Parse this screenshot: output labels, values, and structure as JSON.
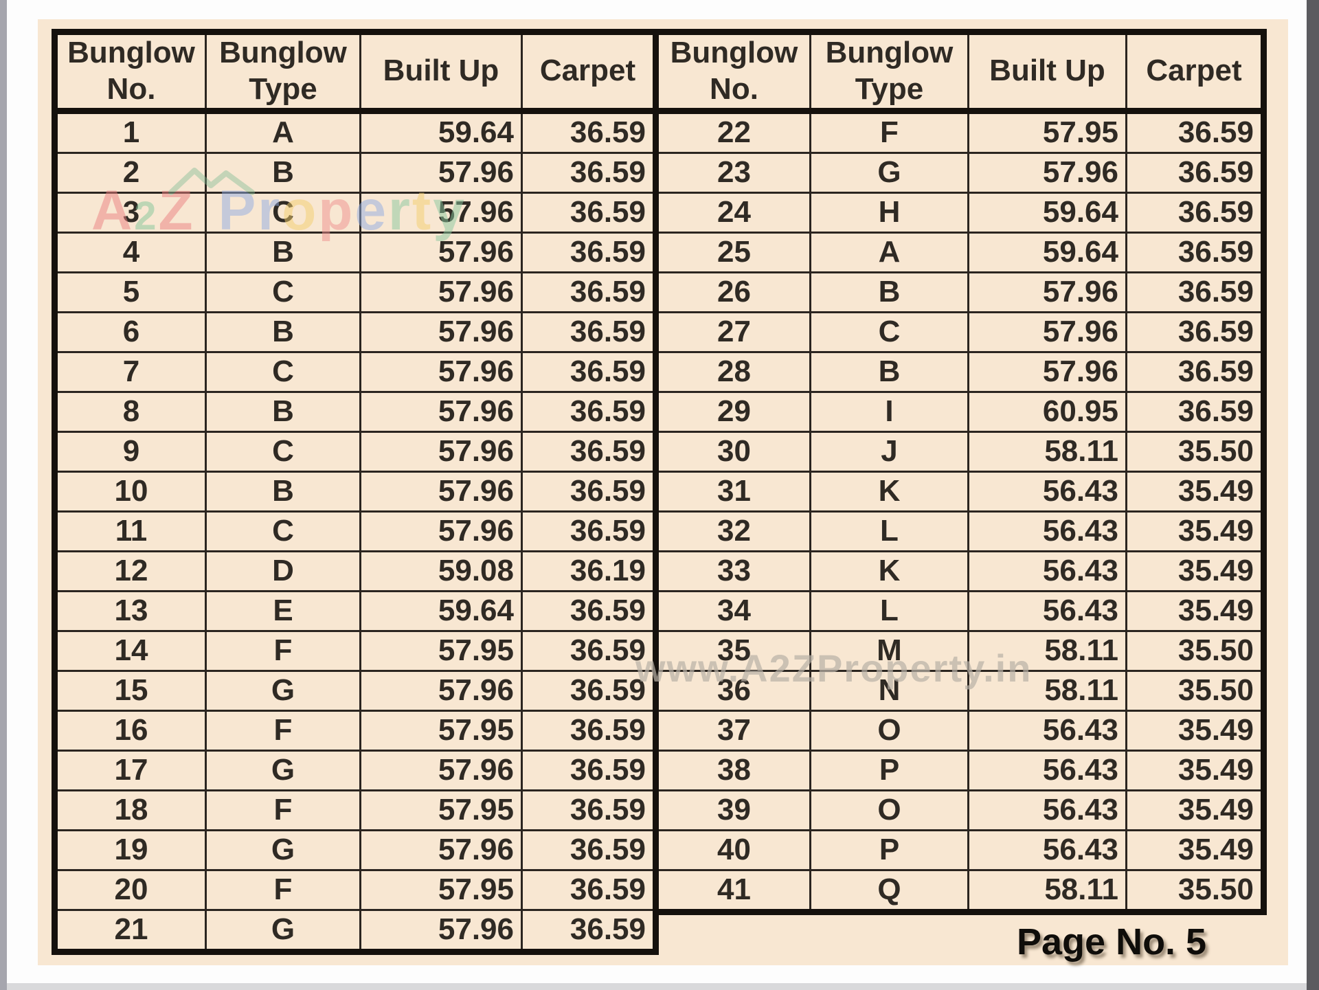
{
  "document": {
    "headers": [
      {
        "line1": "Bunglow",
        "line2": "No."
      },
      {
        "line1": "Bunglow",
        "line2": "Type"
      },
      {
        "line1": "Built Up",
        "line2": ""
      },
      {
        "line1": "Carpet",
        "line2": ""
      }
    ],
    "left_table": {
      "rows": [
        {
          "no": "1",
          "type": "A",
          "built_up": "59.64",
          "carpet": "36.59"
        },
        {
          "no": "2",
          "type": "B",
          "built_up": "57.96",
          "carpet": "36.59"
        },
        {
          "no": "3",
          "type": "C",
          "built_up": "57.96",
          "carpet": "36.59"
        },
        {
          "no": "4",
          "type": "B",
          "built_up": "57.96",
          "carpet": "36.59"
        },
        {
          "no": "5",
          "type": "C",
          "built_up": "57.96",
          "carpet": "36.59"
        },
        {
          "no": "6",
          "type": "B",
          "built_up": "57.96",
          "carpet": "36.59"
        },
        {
          "no": "7",
          "type": "C",
          "built_up": "57.96",
          "carpet": "36.59"
        },
        {
          "no": "8",
          "type": "B",
          "built_up": "57.96",
          "carpet": "36.59"
        },
        {
          "no": "9",
          "type": "C",
          "built_up": "57.96",
          "carpet": "36.59"
        },
        {
          "no": "10",
          "type": "B",
          "built_up": "57.96",
          "carpet": "36.59"
        },
        {
          "no": "11",
          "type": "C",
          "built_up": "57.96",
          "carpet": "36.59"
        },
        {
          "no": "12",
          "type": "D",
          "built_up": "59.08",
          "carpet": "36.19"
        },
        {
          "no": "13",
          "type": "E",
          "built_up": "59.64",
          "carpet": "36.59"
        },
        {
          "no": "14",
          "type": "F",
          "built_up": "57.95",
          "carpet": "36.59"
        },
        {
          "no": "15",
          "type": "G",
          "built_up": "57.96",
          "carpet": "36.59"
        },
        {
          "no": "16",
          "type": "F",
          "built_up": "57.95",
          "carpet": "36.59"
        },
        {
          "no": "17",
          "type": "G",
          "built_up": "57.96",
          "carpet": "36.59"
        },
        {
          "no": "18",
          "type": "F",
          "built_up": "57.95",
          "carpet": "36.59"
        },
        {
          "no": "19",
          "type": "G",
          "built_up": "57.96",
          "carpet": "36.59"
        },
        {
          "no": "20",
          "type": "F",
          "built_up": "57.95",
          "carpet": "36.59"
        },
        {
          "no": "21",
          "type": "G",
          "built_up": "57.96",
          "carpet": "36.59"
        }
      ]
    },
    "right_table": {
      "rows": [
        {
          "no": "22",
          "type": "F",
          "built_up": "57.95",
          "carpet": "36.59"
        },
        {
          "no": "23",
          "type": "G",
          "built_up": "57.96",
          "carpet": "36.59"
        },
        {
          "no": "24",
          "type": "H",
          "built_up": "59.64",
          "carpet": "36.59"
        },
        {
          "no": "25",
          "type": "A",
          "built_up": "59.64",
          "carpet": "36.59"
        },
        {
          "no": "26",
          "type": "B",
          "built_up": "57.96",
          "carpet": "36.59"
        },
        {
          "no": "27",
          "type": "C",
          "built_up": "57.96",
          "carpet": "36.59"
        },
        {
          "no": "28",
          "type": "B",
          "built_up": "57.96",
          "carpet": "36.59"
        },
        {
          "no": "29",
          "type": "I",
          "built_up": "60.95",
          "carpet": "36.59"
        },
        {
          "no": "30",
          "type": "J",
          "built_up": "58.11",
          "carpet": "35.50"
        },
        {
          "no": "31",
          "type": "K",
          "built_up": "56.43",
          "carpet": "35.49"
        },
        {
          "no": "32",
          "type": "L",
          "built_up": "56.43",
          "carpet": "35.49"
        },
        {
          "no": "33",
          "type": "K",
          "built_up": "56.43",
          "carpet": "35.49"
        },
        {
          "no": "34",
          "type": "L",
          "built_up": "56.43",
          "carpet": "35.49"
        },
        {
          "no": "35",
          "type": "M",
          "built_up": "58.11",
          "carpet": "35.50"
        },
        {
          "no": "36",
          "type": "N",
          "built_up": "58.11",
          "carpet": "35.50"
        },
        {
          "no": "37",
          "type": "O",
          "built_up": "56.43",
          "carpet": "35.49"
        },
        {
          "no": "38",
          "type": "P",
          "built_up": "56.43",
          "carpet": "35.49"
        },
        {
          "no": "39",
          "type": "O",
          "built_up": "56.43",
          "carpet": "35.49"
        },
        {
          "no": "40",
          "type": "P",
          "built_up": "56.43",
          "carpet": "35.49"
        },
        {
          "no": "41",
          "type": "Q",
          "built_up": "58.11",
          "carpet": "35.50"
        }
      ]
    },
    "watermarks": {
      "brand_letters": [
        {
          "ch": "A",
          "color": "#ec8181"
        },
        {
          "ch": "2",
          "color": "#84c79a",
          "small": true
        },
        {
          "ch": "Z",
          "color": "#ec8181"
        },
        {
          "ch": " "
        },
        {
          "ch": "P",
          "color": "#92ace2"
        },
        {
          "ch": "r",
          "color": "#92ace2"
        },
        {
          "ch": "o",
          "color": "#f4cf6e"
        },
        {
          "ch": "p",
          "color": "#ef9090"
        },
        {
          "ch": "e",
          "color": "#92ace2"
        },
        {
          "ch": "r",
          "color": "#8ac89f"
        },
        {
          "ch": "t",
          "color": "#f4cf6e"
        },
        {
          "ch": "y",
          "color": "#8ac89f"
        }
      ],
      "roof_color": "#7fba92",
      "url_text": "www.A2ZProperty.in"
    },
    "footer": {
      "page_label": "Page No. 5"
    },
    "theme": {
      "paper_bg": "#f8e7d2",
      "border_dark": "#15110d",
      "text_color": "#2f2a24",
      "scrollbar_color": "#5b5b5f"
    }
  }
}
